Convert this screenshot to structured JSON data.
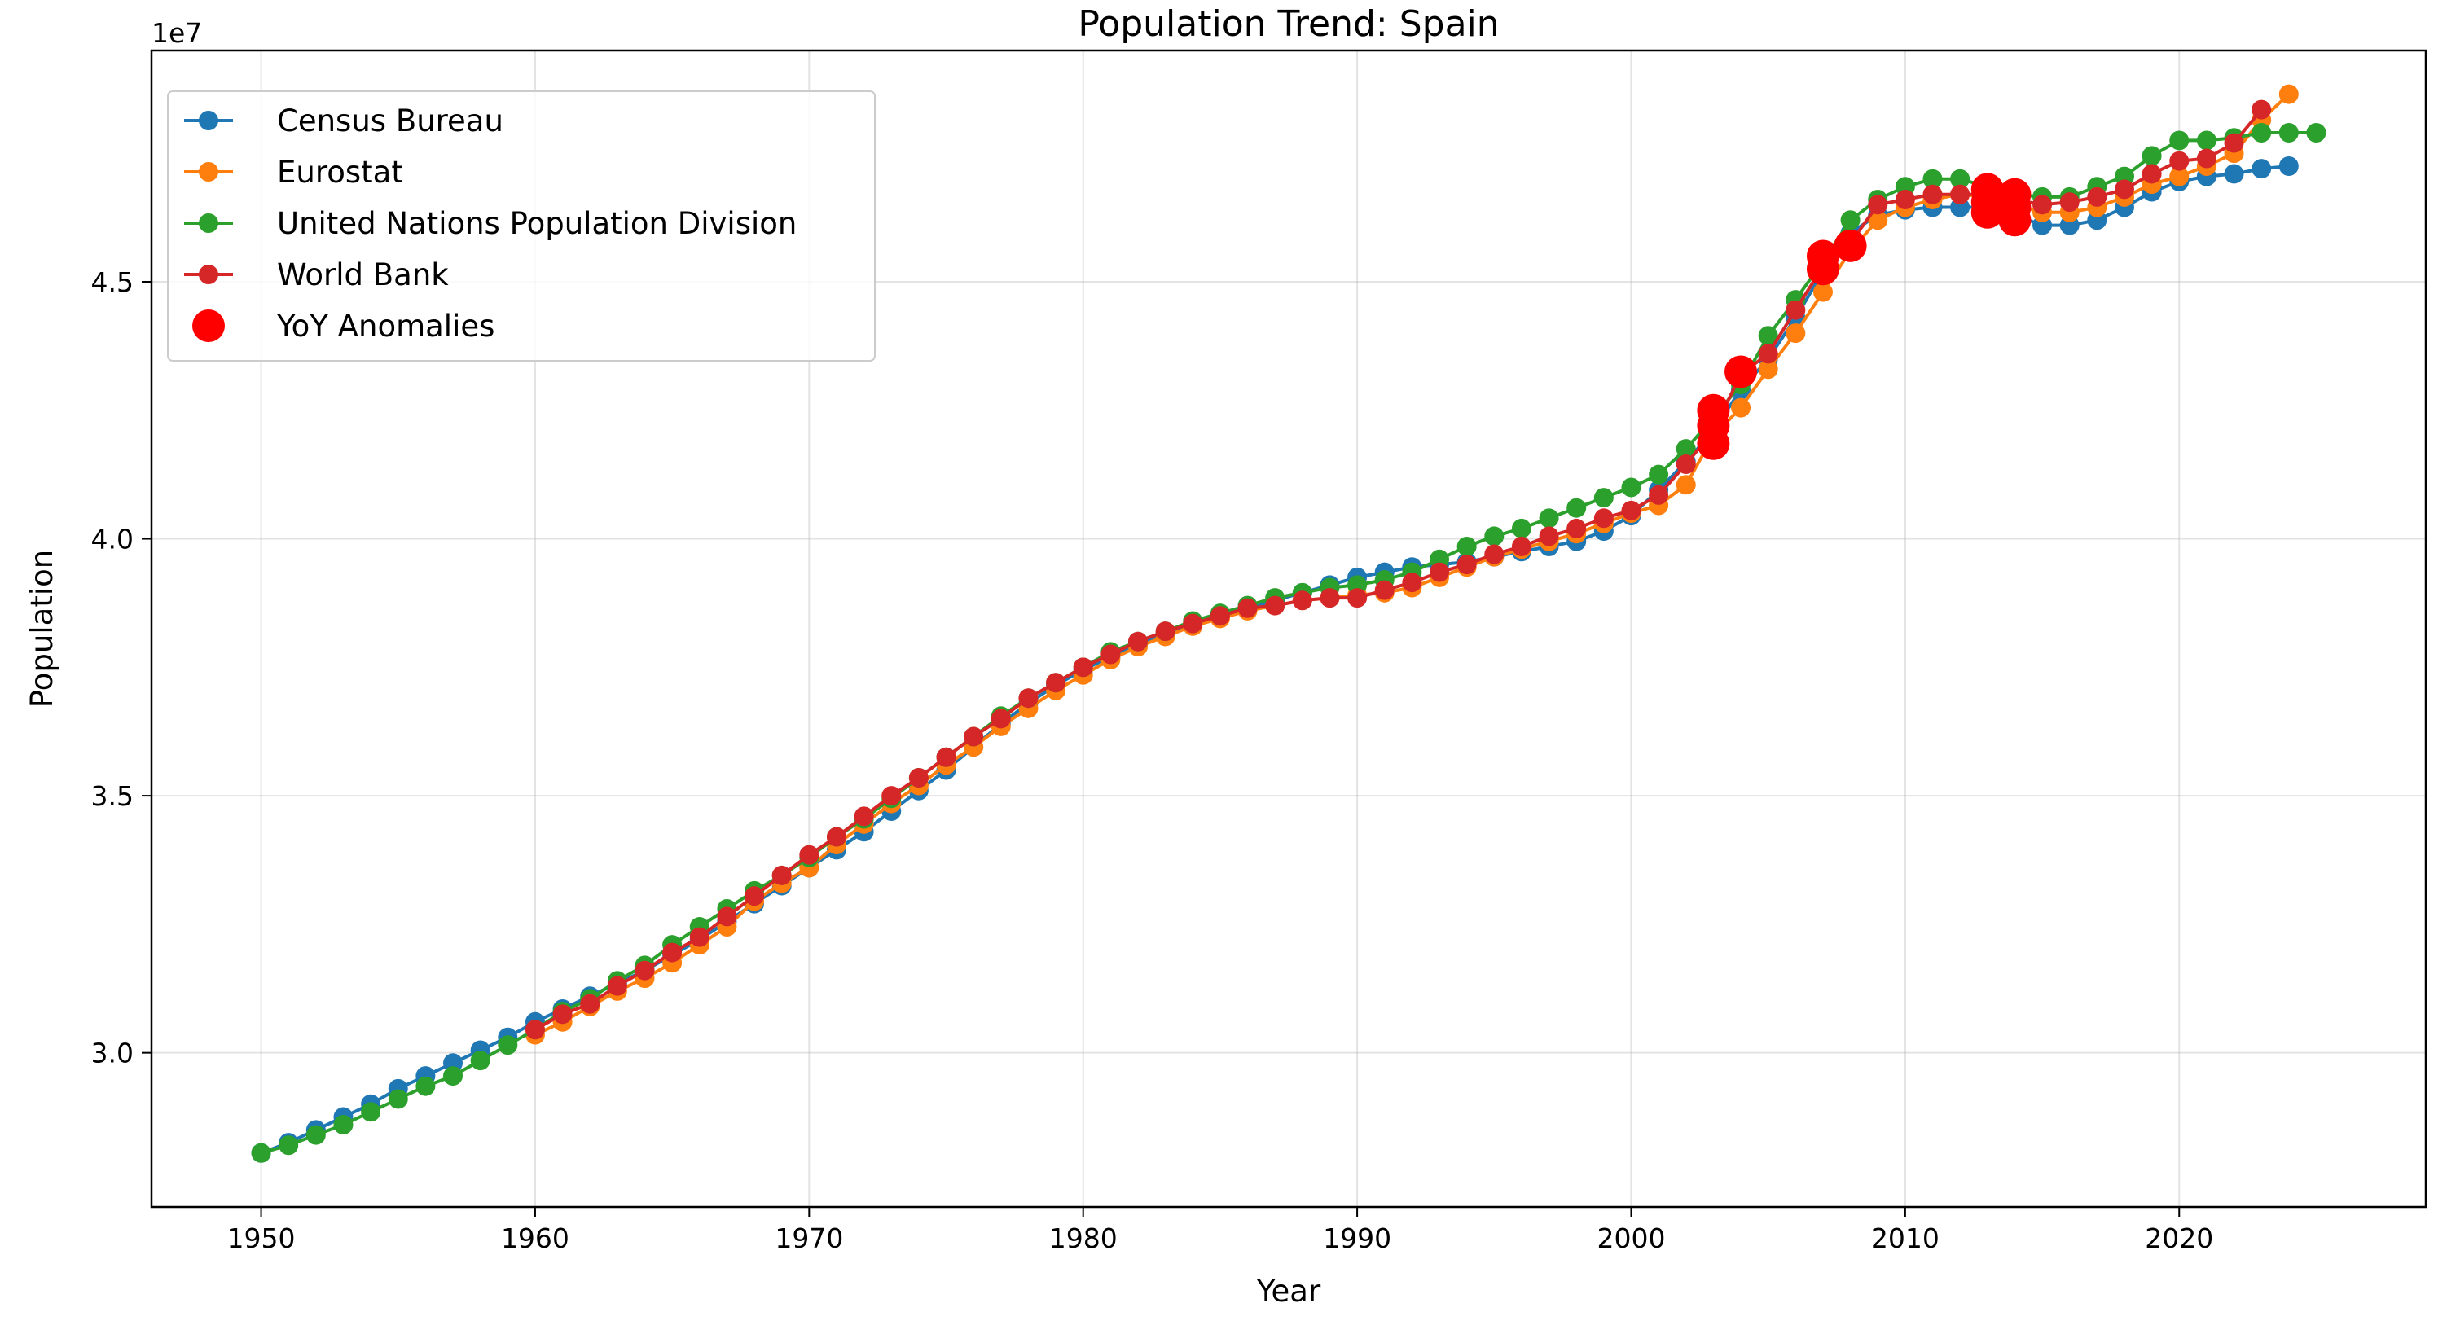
{
  "chart_data": {
    "type": "line",
    "title": "Population Trend: Spain",
    "xlabel": "Year",
    "ylabel": "Population",
    "y_offset_label": "1e7",
    "xlim": [
      1946,
      2029
    ],
    "ylim": [
      27.0,
      49.5
    ],
    "y_scale_factor": 10000000,
    "x_ticks": [
      1950,
      1960,
      1970,
      1980,
      1990,
      2000,
      2010,
      2020
    ],
    "x_tick_labels": [
      "1950",
      "1960",
      "1970",
      "1980",
      "1990",
      "2000",
      "2010",
      "2020"
    ],
    "y_ticks": [
      30.0,
      35.0,
      40.0,
      45.0
    ],
    "y_tick_labels": [
      "3.0",
      "3.5",
      "4.0",
      "4.5"
    ],
    "grid": true,
    "legend_position": "top-left",
    "series": [
      {
        "name": "Census Bureau",
        "color": "#1f77b4",
        "x": [
          1950,
          1951,
          1952,
          1953,
          1954,
          1955,
          1956,
          1957,
          1958,
          1959,
          1960,
          1961,
          1962,
          1963,
          1964,
          1965,
          1966,
          1967,
          1968,
          1969,
          1970,
          1971,
          1972,
          1973,
          1974,
          1975,
          1976,
          1977,
          1978,
          1979,
          1980,
          1981,
          1982,
          1983,
          1984,
          1985,
          1986,
          1987,
          1988,
          1989,
          1990,
          1991,
          1992,
          1993,
          1994,
          1995,
          1996,
          1997,
          1998,
          1999,
          2000,
          2001,
          2002,
          2003,
          2004,
          2005,
          2006,
          2007,
          2008,
          2009,
          2010,
          2011,
          2012,
          2013,
          2014,
          2015,
          2016,
          2017,
          2018,
          2019,
          2020,
          2021,
          2022,
          2023,
          2024
        ],
        "y": [
          28.05,
          28.25,
          28.5,
          28.75,
          29.0,
          29.3,
          29.55,
          29.8,
          30.05,
          30.3,
          30.6,
          30.85,
          31.1,
          31.35,
          31.6,
          31.9,
          32.2,
          32.55,
          32.9,
          33.25,
          33.6,
          33.95,
          34.3,
          34.7,
          35.1,
          35.5,
          35.95,
          36.4,
          36.8,
          37.15,
          37.45,
          37.7,
          37.95,
          38.15,
          38.35,
          38.5,
          38.65,
          38.8,
          38.95,
          39.1,
          39.25,
          39.35,
          39.45,
          39.5,
          39.55,
          39.65,
          39.75,
          39.85,
          39.95,
          40.15,
          40.45,
          40.95,
          41.5,
          42.1,
          42.9,
          43.5,
          44.3,
          45.2,
          45.95,
          46.3,
          46.4,
          46.45,
          46.45,
          46.45,
          46.3,
          46.1,
          46.1,
          46.2,
          46.45,
          46.75,
          46.95,
          47.05,
          47.1,
          47.2,
          47.25
        ]
      },
      {
        "name": "Eurostat",
        "color": "#ff7f0e",
        "x": [
          1960,
          1961,
          1962,
          1963,
          1964,
          1965,
          1966,
          1967,
          1968,
          1969,
          1970,
          1971,
          1972,
          1973,
          1974,
          1975,
          1976,
          1977,
          1978,
          1979,
          1980,
          1981,
          1982,
          1983,
          1984,
          1985,
          1986,
          1987,
          1988,
          1989,
          1990,
          1991,
          1992,
          1993,
          1994,
          1995,
          1996,
          1997,
          1998,
          1999,
          2000,
          2001,
          2002,
          2003,
          2004,
          2005,
          2006,
          2007,
          2008,
          2009,
          2010,
          2011,
          2012,
          2013,
          2014,
          2015,
          2016,
          2017,
          2018,
          2019,
          2020,
          2021,
          2022,
          2023,
          2024
        ],
        "y": [
          30.35,
          30.6,
          30.9,
          31.2,
          31.45,
          31.75,
          32.1,
          32.45,
          32.95,
          33.3,
          33.6,
          34.05,
          34.45,
          34.85,
          35.2,
          35.6,
          35.95,
          36.35,
          36.7,
          37.05,
          37.35,
          37.65,
          37.9,
          38.1,
          38.3,
          38.45,
          38.6,
          38.7,
          38.8,
          38.85,
          38.9,
          38.95,
          39.05,
          39.25,
          39.45,
          39.65,
          39.8,
          39.95,
          40.1,
          40.3,
          40.5,
          40.65,
          41.05,
          42.0,
          42.55,
          43.3,
          44.0,
          44.8,
          45.6,
          46.2,
          46.45,
          46.6,
          46.7,
          46.65,
          46.5,
          46.35,
          46.35,
          46.45,
          46.65,
          46.9,
          47.05,
          47.25,
          47.5,
          48.15,
          48.65
        ]
      },
      {
        "name": "United Nations Population Division",
        "color": "#2ca02c",
        "x": [
          1950,
          1951,
          1952,
          1953,
          1954,
          1955,
          1956,
          1957,
          1958,
          1959,
          1960,
          1961,
          1962,
          1963,
          1964,
          1965,
          1966,
          1967,
          1968,
          1969,
          1970,
          1971,
          1972,
          1973,
          1974,
          1975,
          1976,
          1977,
          1978,
          1979,
          1980,
          1981,
          1982,
          1983,
          1984,
          1985,
          1986,
          1987,
          1988,
          1989,
          1990,
          1991,
          1992,
          1993,
          1994,
          1995,
          1996,
          1997,
          1998,
          1999,
          2000,
          2001,
          2002,
          2003,
          2004,
          2005,
          2006,
          2007,
          2008,
          2009,
          2010,
          2011,
          2012,
          2013,
          2014,
          2015,
          2016,
          2017,
          2018,
          2019,
          2020,
          2021,
          2022,
          2023,
          2024,
          2025
        ],
        "y": [
          28.05,
          28.2,
          28.4,
          28.6,
          28.85,
          29.1,
          29.35,
          29.55,
          29.85,
          30.15,
          30.45,
          30.8,
          31.05,
          31.4,
          31.7,
          32.1,
          32.45,
          32.8,
          33.15,
          33.45,
          33.8,
          34.2,
          34.55,
          34.95,
          35.35,
          35.75,
          36.15,
          36.55,
          36.9,
          37.2,
          37.5,
          37.8,
          38.0,
          38.2,
          38.4,
          38.55,
          38.7,
          38.85,
          38.95,
          39.05,
          39.1,
          39.2,
          39.35,
          39.6,
          39.85,
          40.05,
          40.2,
          40.4,
          40.6,
          40.8,
          41.0,
          41.25,
          41.75,
          42.35,
          43.0,
          43.95,
          44.65,
          45.4,
          46.2,
          46.6,
          46.85,
          47.0,
          47.0,
          46.85,
          46.7,
          46.65,
          46.65,
          46.85,
          47.05,
          47.45,
          47.75,
          47.75,
          47.8,
          47.9,
          47.9,
          47.9
        ]
      },
      {
        "name": "World Bank",
        "color": "#d62728",
        "x": [
          1960,
          1961,
          1962,
          1963,
          1964,
          1965,
          1966,
          1967,
          1968,
          1969,
          1970,
          1971,
          1972,
          1973,
          1974,
          1975,
          1976,
          1977,
          1978,
          1979,
          1980,
          1981,
          1982,
          1983,
          1984,
          1985,
          1986,
          1987,
          1988,
          1989,
          1990,
          1991,
          1992,
          1993,
          1994,
          1995,
          1996,
          1997,
          1998,
          1999,
          2000,
          2001,
          2002,
          2003,
          2004,
          2005,
          2006,
          2007,
          2008,
          2009,
          2010,
          2011,
          2012,
          2013,
          2014,
          2015,
          2016,
          2017,
          2018,
          2019,
          2020,
          2021,
          2022,
          2023
        ],
        "y": [
          30.45,
          30.75,
          30.95,
          31.3,
          31.6,
          31.95,
          32.25,
          32.65,
          33.05,
          33.45,
          33.85,
          34.2,
          34.6,
          35.0,
          35.35,
          35.75,
          36.15,
          36.5,
          36.9,
          37.2,
          37.5,
          37.75,
          38.0,
          38.2,
          38.35,
          38.5,
          38.65,
          38.7,
          38.8,
          38.85,
          38.85,
          39.0,
          39.15,
          39.35,
          39.5,
          39.7,
          39.85,
          40.05,
          40.2,
          40.4,
          40.55,
          40.85,
          41.45,
          42.1,
          43.2,
          43.6,
          44.45,
          45.3,
          45.75,
          46.5,
          46.6,
          46.7,
          46.7,
          46.7,
          46.6,
          46.5,
          46.55,
          46.65,
          46.8,
          47.1,
          47.35,
          47.4,
          47.7,
          48.35
        ]
      }
    ],
    "anomalies": {
      "name": "YoY Anomalies",
      "color": "#ff0000",
      "x": [
        2003,
        2003,
        2003,
        2004,
        2007,
        2007,
        2008,
        2013,
        2013,
        2013,
        2014,
        2014,
        2014
      ],
      "y": [
        41.85,
        42.2,
        42.5,
        43.25,
        45.25,
        45.5,
        45.7,
        46.8,
        46.55,
        46.35,
        46.7,
        46.45,
        46.2
      ]
    }
  }
}
